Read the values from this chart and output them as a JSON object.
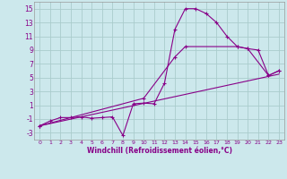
{
  "bg_color": "#cce8ec",
  "grid_color": "#aacccc",
  "line_color": "#880088",
  "xlabel": "Windchill (Refroidissement éolien,°C)",
  "xlim": [
    -0.5,
    23.5
  ],
  "ylim": [
    -4,
    16
  ],
  "yticks": [
    -3,
    -1,
    1,
    3,
    5,
    7,
    9,
    11,
    13,
    15
  ],
  "xticks": [
    0,
    1,
    2,
    3,
    4,
    5,
    6,
    7,
    8,
    9,
    10,
    11,
    12,
    13,
    14,
    15,
    16,
    17,
    18,
    19,
    20,
    21,
    22,
    23
  ],
  "line1_x": [
    0,
    1,
    2,
    3,
    4,
    5,
    6,
    7,
    8,
    9,
    10,
    11,
    12,
    13,
    14,
    15,
    16,
    17,
    18,
    19,
    20,
    21,
    22,
    23
  ],
  "line1_y": [
    -2,
    -1.3,
    -0.8,
    -0.8,
    -0.7,
    -0.9,
    -0.8,
    -0.7,
    -3.4,
    1.2,
    1.3,
    1.2,
    4.2,
    12.0,
    15.0,
    15.0,
    14.3,
    13.0,
    11.0,
    9.5,
    9.2,
    9.0,
    5.3,
    6.0
  ],
  "line2_x": [
    0,
    23
  ],
  "line2_y": [
    -2,
    5.5
  ],
  "line3_x": [
    0,
    10,
    13,
    14,
    19,
    20,
    22,
    23
  ],
  "line3_y": [
    -2,
    2.0,
    8.0,
    9.5,
    9.5,
    9.2,
    5.3,
    6.0
  ],
  "xlabel_fontsize": 5.5,
  "tick_fontsize_x": 4.5,
  "tick_fontsize_y": 5.5
}
